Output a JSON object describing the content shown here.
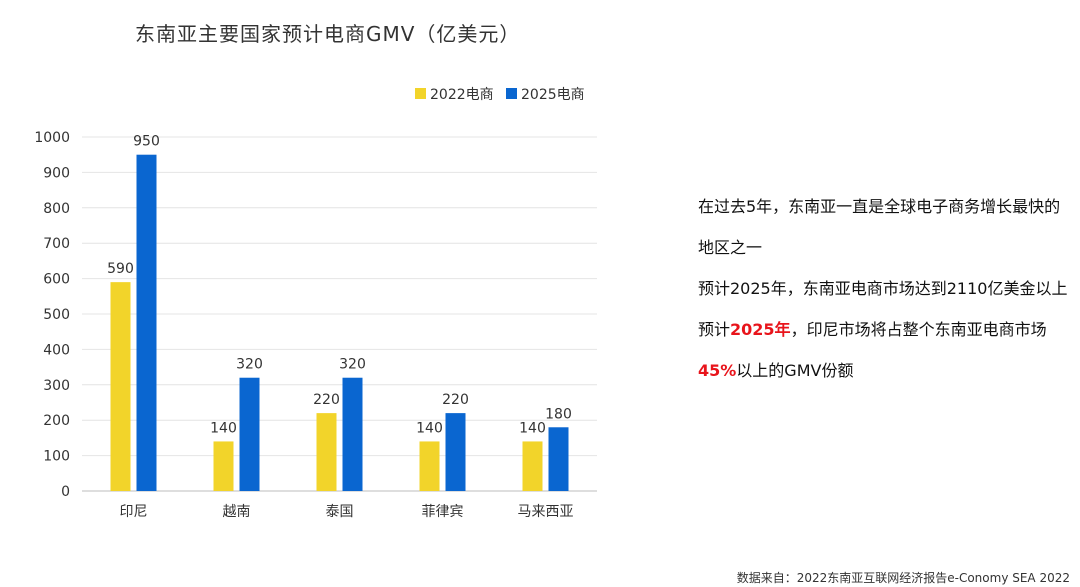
{
  "chart_data": {
    "type": "bar",
    "title": "东南亚主要国家预计电商GMV（亿美元）",
    "categories": [
      "印尼",
      "越南",
      "泰国",
      "菲律宾",
      "马来西亚"
    ],
    "series": [
      {
        "name": "2022电商",
        "values": [
          590,
          140,
          220,
          140,
          140
        ],
        "color": "#f2d42a"
      },
      {
        "name": "2025电商",
        "values": [
          950,
          320,
          320,
          220,
          180
        ],
        "color": "#0a66d0"
      }
    ],
    "ylim": [
      0,
      1000
    ],
    "yticks": [
      0,
      100,
      200,
      300,
      400,
      500,
      600,
      700,
      800,
      900,
      1000
    ],
    "grid": true,
    "legend": "top-right"
  },
  "notes": {
    "line1": "在过去5年，东南亚一直是全球电子商务增长最快的地区之一",
    "line2": "预计2025年，东南亚电商市场达到2110亿美金以上",
    "line3_pre": "预计",
    "line3_hl1": "2025年",
    "line3_mid": "，印尼市场将占整个东南亚电商市场",
    "line3_hl2": "45%",
    "line3_post": "以上的GMV份额"
  },
  "source": "数据来自：2022东南亚互联网经济报告e-Conomy SEA 2022"
}
